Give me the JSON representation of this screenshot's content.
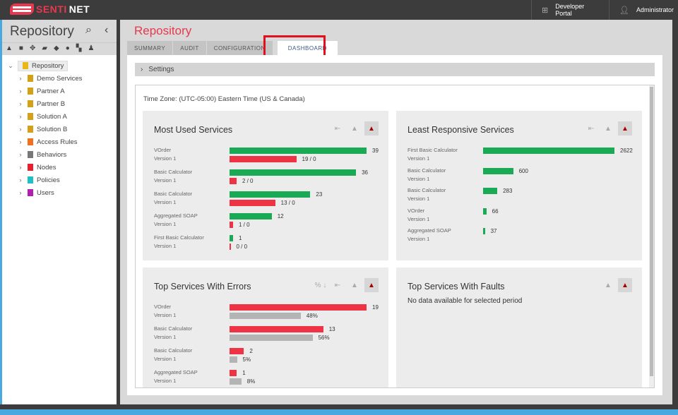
{
  "brand": {
    "part1": "SENTI",
    "part2": "NET"
  },
  "topbar": {
    "developer_portal": "Developer Portal",
    "user": "Administrator"
  },
  "sidebar": {
    "title": "Repository",
    "icons": [
      "▲",
      "■",
      "✥",
      "▰",
      "◆",
      "●",
      "▚",
      "♟"
    ],
    "root": "Repository",
    "items": [
      {
        "label": "Demo Services",
        "color": "#d4a017"
      },
      {
        "label": "Partner A",
        "color": "#d4a017"
      },
      {
        "label": "Partner B",
        "color": "#d4a017"
      },
      {
        "label": "Solution A",
        "color": "#d4a017"
      },
      {
        "label": "Solution B",
        "color": "#d4a017"
      },
      {
        "label": "Access Rules",
        "color": "#f07020"
      },
      {
        "label": "Behaviors",
        "color": "#777777"
      },
      {
        "label": "Nodes",
        "color": "#e8202e"
      },
      {
        "label": "Policies",
        "color": "#20c0c0"
      },
      {
        "label": "Users",
        "color": "#b020b0"
      }
    ]
  },
  "main": {
    "title": "Repository",
    "tabs": [
      "SUMMARY",
      "AUDIT",
      "CONFIGURATION",
      "DASHBOARD"
    ],
    "settings": "Settings",
    "timezone": "Time Zone: (UTC-05:00) Eastern Time (US & Canada)"
  },
  "colors": {
    "green": "#1aaa55",
    "red": "#ee3344",
    "gray": "#b4b4b4"
  },
  "cards": {
    "most_used": {
      "title": "Most Used Services",
      "rows": [
        {
          "name": "VOrder",
          "version": "Version 1",
          "value": 39,
          "errors": 19,
          "faults": 0,
          "err_label": "19 / 0"
        },
        {
          "name": "Basic Calculator",
          "version": "Version 1",
          "value": 36,
          "errors": 2,
          "faults": 0,
          "err_label": "2 / 0"
        },
        {
          "name": "Basic Calculator",
          "version": "Version 1",
          "value": 23,
          "errors": 13,
          "faults": 0,
          "err_label": "13 / 0"
        },
        {
          "name": "Aggregated SOAP",
          "version": "Version 1",
          "value": 12,
          "errors": 1,
          "faults": 0,
          "err_label": "1 / 0"
        },
        {
          "name": "First Basic Calculator",
          "version": "Version 1",
          "value": 1,
          "errors": 0,
          "faults": 0,
          "err_label": "0 / 0"
        }
      ]
    },
    "least_responsive": {
      "title": "Least Responsive Services",
      "rows": [
        {
          "name": "First Basic Calculator",
          "version": "Version 1",
          "value": 2622
        },
        {
          "name": "Basic Calculator",
          "version": "Version 1",
          "value": 600
        },
        {
          "name": "Basic Calculator",
          "version": "Version 1",
          "value": 283
        },
        {
          "name": "VOrder",
          "version": "Version 1",
          "value": 66
        },
        {
          "name": "Aggregated SOAP",
          "version": "Version 1",
          "value": 37
        }
      ]
    },
    "errors": {
      "title": "Top Services With Errors",
      "pct_icon": "% ↓",
      "rows": [
        {
          "name": "VOrder",
          "version": "Version 1",
          "value": 19,
          "pct": 48,
          "pct_label": "48%"
        },
        {
          "name": "Basic Calculator",
          "version": "Version 1",
          "value": 13,
          "pct": 56,
          "pct_label": "56%"
        },
        {
          "name": "Basic Calculator",
          "version": "Version 1",
          "value": 2,
          "pct": 5,
          "pct_label": "5%"
        },
        {
          "name": "Aggregated SOAP",
          "version": "Version 1",
          "value": 1,
          "pct": 8,
          "pct_label": "8%"
        }
      ]
    },
    "faults": {
      "title": "Top Services With Faults",
      "empty": "No data available for selected period"
    }
  }
}
